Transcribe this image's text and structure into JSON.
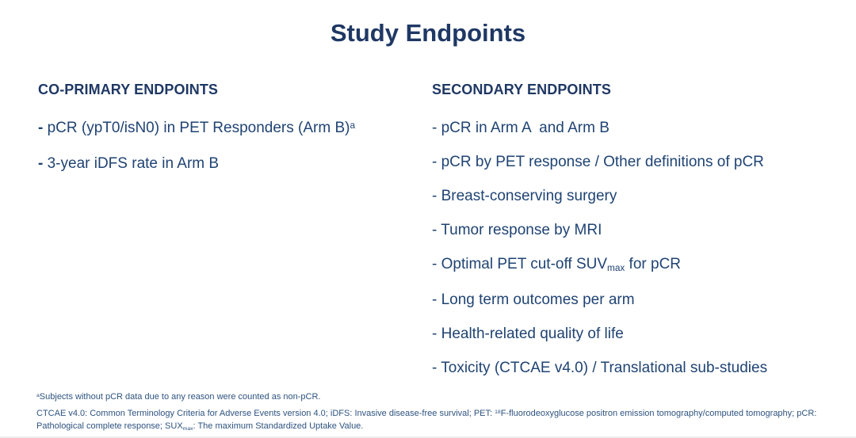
{
  "slide": {
    "title": "Study Endpoints",
    "colors": {
      "background": "#FFFFFF",
      "title": "#1F3864",
      "heading": "#1F3864",
      "body_text": "#1F4373",
      "footnote_text": "#2E5380"
    }
  },
  "co_primary": {
    "header": "CO-PRIMARY ENDPOINTS",
    "items": [
      {
        "dash": "-",
        "text": " pCR (ypT0/isN0) in PET Responders (Arm B)",
        "sup": "a"
      },
      {
        "dash": "-",
        "text": " 3-year iDFS rate in Arm B"
      }
    ]
  },
  "secondary": {
    "header": "SECONDARY ENDPOINTS",
    "items": [
      {
        "text": "- pCR in Arm A  and Arm B"
      },
      {
        "text": "- pCR by PET response / Other definitions of pCR"
      },
      {
        "text": "- Breast-conserving surgery"
      },
      {
        "text": "- Tumor response by MRI"
      },
      {
        "pre": "- Optimal PET cut-off SUV",
        "sub": "max",
        "post": " for pCR"
      },
      {
        "text": "- Long term outcomes per arm"
      },
      {
        "text": "- Health-related quality of life"
      },
      {
        "text": "- Toxicity (CTCAE v4.0) / Translational sub-studies"
      }
    ]
  },
  "footnotes": {
    "note_a": {
      "sup": "a",
      "text": "Subjects without pCR data due to any reason were counted as non-pCR."
    },
    "definitions": {
      "part1": "CTCAE v4.0: Common Terminology Criteria for Adverse Events version 4.0; iDFS: Invasive disease-free survival; PET: ",
      "sup": "18",
      "part2": "F-fluorodeoxyglucose positron emission tomography/computed tomography; pCR: Pathological complete response; SUX",
      "sub": "max",
      "part3": ": The maximum Standardized Uptake Value."
    }
  }
}
